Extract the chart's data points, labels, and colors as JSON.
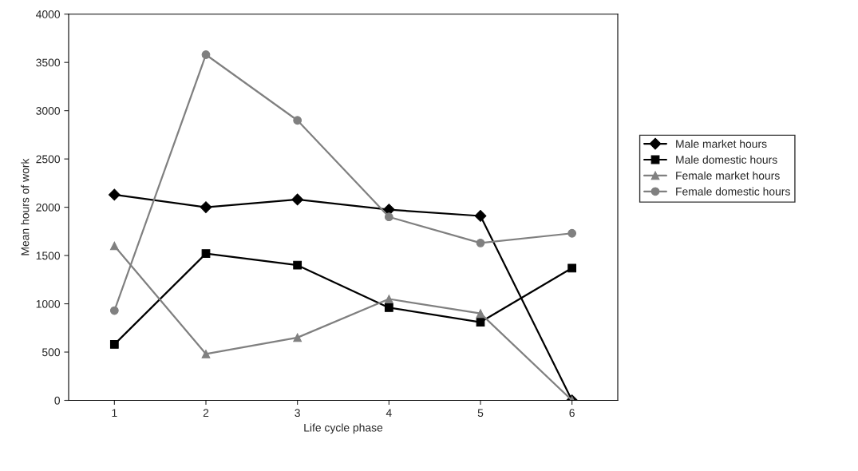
{
  "chart_data": {
    "type": "line",
    "xlabel": "Life cycle phase",
    "ylabel": "Mean hours of work",
    "categories": [
      "1",
      "2",
      "3",
      "4",
      "5",
      "6"
    ],
    "series": [
      {
        "name": "Male market hours",
        "color": "#000000",
        "marker": "diamond",
        "values": [
          2130,
          2000,
          2080,
          1975,
          1910,
          0
        ]
      },
      {
        "name": "Male domestic hours",
        "color": "#000000",
        "marker": "square",
        "values": [
          580,
          1520,
          1400,
          960,
          810,
          1370
        ]
      },
      {
        "name": "Female market hours",
        "color": "#808080",
        "marker": "triangle",
        "values": [
          1600,
          480,
          650,
          1050,
          900,
          0
        ]
      },
      {
        "name": "Female domestic hours",
        "color": "#808080",
        "marker": "circle",
        "values": [
          930,
          3580,
          2900,
          1900,
          1630,
          1730
        ]
      }
    ],
    "ylim": [
      0,
      4000
    ],
    "yticks": [
      0,
      500,
      1000,
      1500,
      2000,
      2500,
      3000,
      3500,
      4000
    ],
    "grid": false,
    "legend": "right"
  }
}
